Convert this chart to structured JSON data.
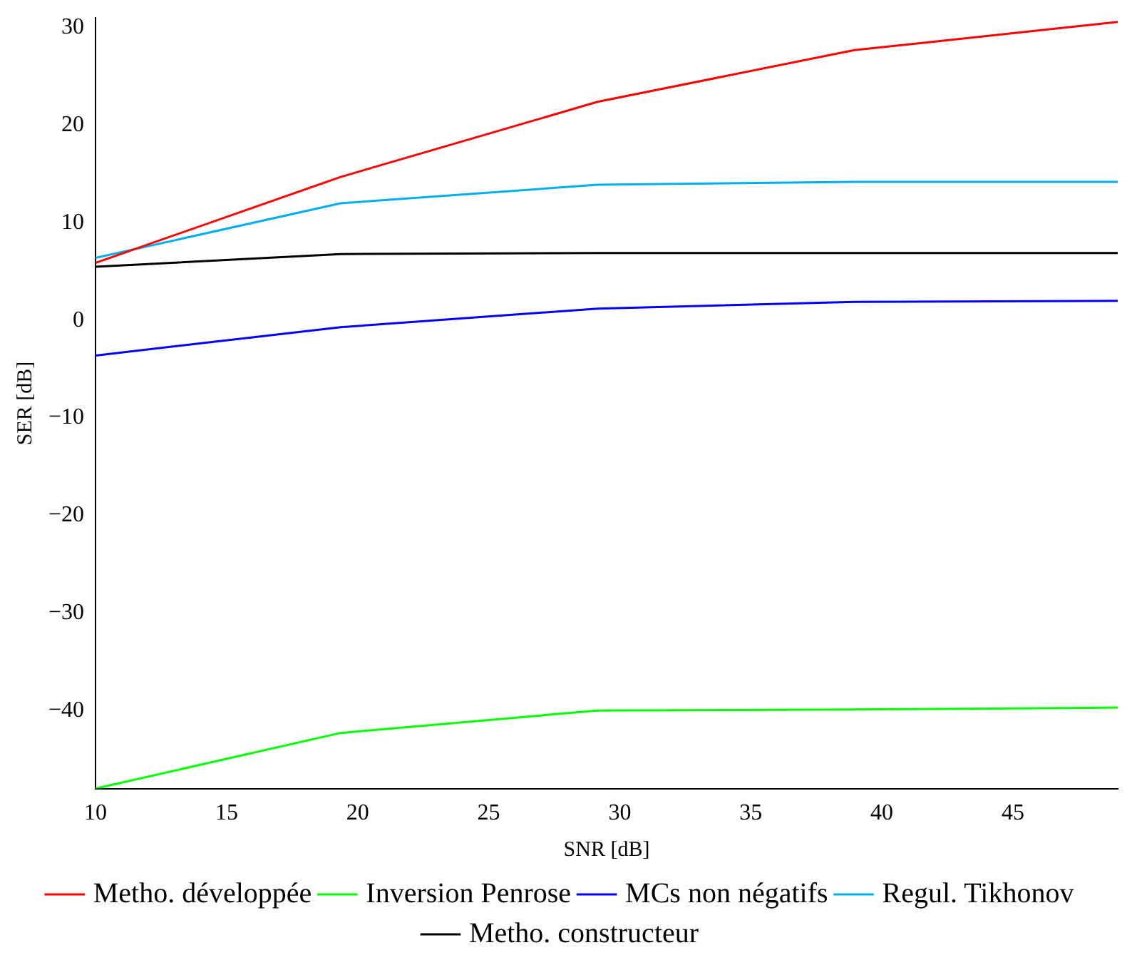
{
  "chart_data": {
    "type": "line",
    "xlabel": "SNR [dB]",
    "ylabel": "SER [dB]",
    "xlim": [
      10,
      49
    ],
    "ylim": [
      -48,
      31
    ],
    "xticks": [
      10,
      15,
      20,
      25,
      30,
      35,
      40,
      45
    ],
    "yticks": [
      -40,
      -30,
      -20,
      -10,
      0,
      10,
      20,
      30
    ],
    "grid": false,
    "legend": "bottom",
    "marker": "none",
    "line_style": "solid",
    "series": [
      {
        "name": "Metho. développée",
        "color": "#ff0000",
        "x": [
          10,
          19.35,
          29.15,
          38.95,
          49
        ],
        "values": [
          5.9,
          14.7,
          22.4,
          27.7,
          30.6
        ]
      },
      {
        "name": "Inversion Penrose",
        "color": "#00ff00",
        "x": [
          10,
          19.35,
          29.15,
          38.95,
          49
        ],
        "values": [
          -48,
          -42.3,
          -40,
          -39.9,
          -39.7
        ]
      },
      {
        "name": "MCs non négatifs",
        "color": "#0000ff",
        "x": [
          10,
          19.35,
          29.15,
          38.95,
          49
        ],
        "values": [
          -3.6,
          -0.7,
          1.2,
          1.9,
          2.0
        ]
      },
      {
        "name": "Regul. Tikhonov",
        "color": "#00aeef",
        "x": [
          10,
          19.35,
          29.15,
          38.95,
          49
        ],
        "values": [
          6.4,
          12.0,
          13.9,
          14.2,
          14.2
        ]
      },
      {
        "name": "Metho. constructeur",
        "color": "#000000",
        "x": [
          10,
          19.35,
          29.15,
          38.95,
          49
        ],
        "values": [
          5.5,
          6.8,
          6.9,
          6.9,
          6.9
        ]
      }
    ]
  }
}
